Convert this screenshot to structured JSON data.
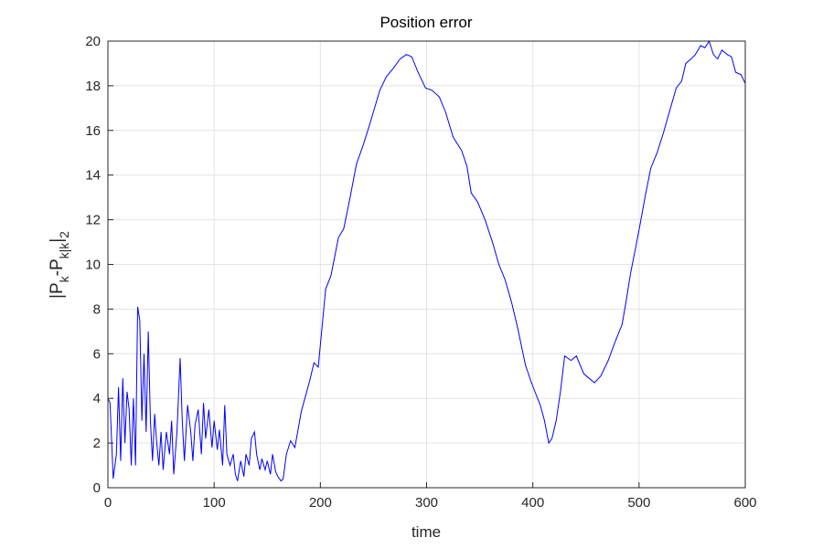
{
  "chart_data": {
    "type": "line",
    "title": "Position error",
    "xlabel": "time",
    "ylabel": [
      {
        "text": "|P"
      },
      {
        "sub": "k"
      },
      {
        "text": "-P"
      },
      {
        "sub": "k|k"
      },
      {
        "text": "|"
      },
      {
        "sub": "2"
      }
    ],
    "color": "#0000ff",
    "grid": true,
    "xlim": [
      0,
      600
    ],
    "ylim": [
      0,
      20
    ],
    "xticks": [
      0,
      100,
      200,
      300,
      400,
      500,
      600
    ],
    "yticks": [
      0,
      2,
      4,
      6,
      8,
      10,
      12,
      14,
      16,
      18,
      20
    ],
    "x": [
      0,
      2,
      5,
      8,
      10,
      12,
      14,
      16,
      18,
      20,
      22,
      24,
      26,
      28,
      30,
      32,
      34,
      36,
      38,
      40,
      42,
      44,
      46,
      48,
      50,
      52,
      55,
      58,
      60,
      62,
      65,
      68,
      70,
      72,
      75,
      78,
      80,
      82,
      85,
      88,
      90,
      92,
      95,
      98,
      100,
      103,
      105,
      108,
      110,
      112,
      115,
      118,
      120,
      122,
      125,
      128,
      130,
      133,
      135,
      138,
      140,
      143,
      145,
      148,
      150,
      153,
      155,
      158,
      160,
      163,
      165,
      168,
      172,
      176,
      182,
      186,
      190,
      194,
      198,
      200,
      205,
      210,
      217,
      222,
      228,
      234,
      240,
      246,
      251,
      256,
      262,
      269,
      275,
      281,
      286,
      292,
      299,
      305,
      312,
      318,
      325,
      333,
      338,
      342,
      348,
      355,
      362,
      368,
      374,
      380,
      386,
      393,
      398,
      402,
      407,
      411,
      415,
      418,
      422,
      426,
      430,
      436,
      441,
      448,
      453,
      458,
      464,
      471,
      478,
      484,
      488,
      492,
      497,
      501,
      506,
      511,
      517,
      523,
      529,
      535,
      540,
      544,
      549,
      553,
      558,
      562,
      566,
      570,
      574,
      578,
      583,
      587,
      591,
      596,
      600
    ],
    "values": [
      4.0,
      3.8,
      0.4,
      1.5,
      4.5,
      1.2,
      4.9,
      2.0,
      4.3,
      3.5,
      1.0,
      4.0,
      1.0,
      8.1,
      7.5,
      3.0,
      6.0,
      2.5,
      7.0,
      3.0,
      1.2,
      3.3,
      2.0,
      1.0,
      2.5,
      0.8,
      2.5,
      1.5,
      3.0,
      0.6,
      2.5,
      5.8,
      3.0,
      1.2,
      3.7,
      2.5,
      1.2,
      2.8,
      3.5,
      1.5,
      3.8,
      2.2,
      3.5,
      1.8,
      3.0,
      1.7,
      2.6,
      1.0,
      3.7,
      1.5,
      1.0,
      1.5,
      0.6,
      0.3,
      1.2,
      0.5,
      1.5,
      1.0,
      2.2,
      2.5,
      1.5,
      0.8,
      1.3,
      0.8,
      1.2,
      0.6,
      1.5,
      0.7,
      0.5,
      0.3,
      0.4,
      1.5,
      2.1,
      1.8,
      3.4,
      4.1,
      4.8,
      5.6,
      5.4,
      6.4,
      8.9,
      9.5,
      11.2,
      11.6,
      13.0,
      14.5,
      15.3,
      16.2,
      17.0,
      17.8,
      18.4,
      18.8,
      19.2,
      19.4,
      19.3,
      18.6,
      17.9,
      17.8,
      17.5,
      16.8,
      15.7,
      15.1,
      14.4,
      13.2,
      12.8,
      12.0,
      11.0,
      10.0,
      9.3,
      8.3,
      7.1,
      5.5,
      4.8,
      4.3,
      3.7,
      3.0,
      2.0,
      2.2,
      3.0,
      4.3,
      5.9,
      5.7,
      5.9,
      5.1,
      4.9,
      4.7,
      5.0,
      5.7,
      6.6,
      7.3,
      8.4,
      9.6,
      10.8,
      11.8,
      13.1,
      14.3,
      15.0,
      15.9,
      16.9,
      17.9,
      18.2,
      19.0,
      19.2,
      19.4,
      19.8,
      19.7,
      20.0,
      19.4,
      19.2,
      19.6,
      19.4,
      19.3,
      18.6,
      18.5,
      18.1
    ]
  }
}
